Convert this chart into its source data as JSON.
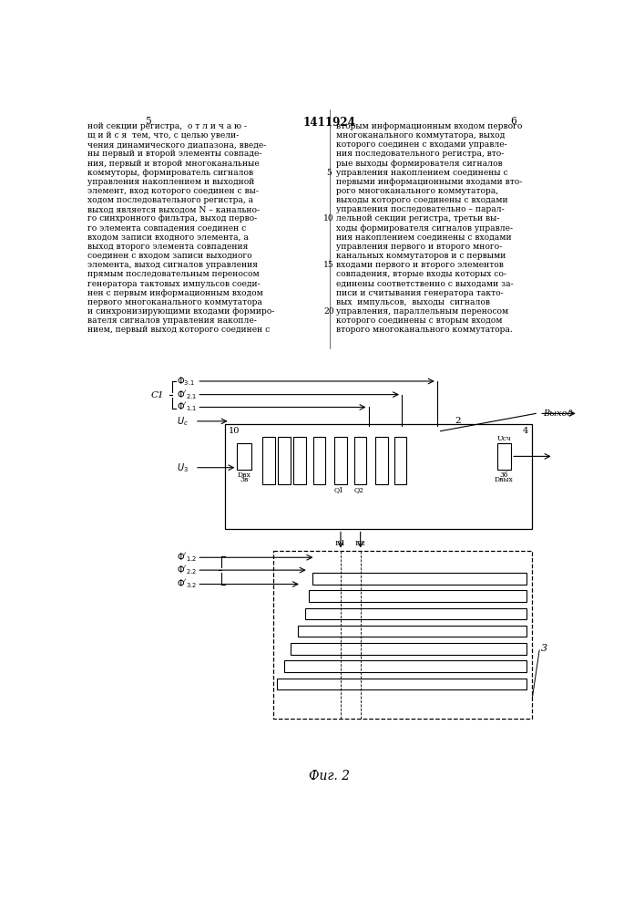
{
  "title": "1411924",
  "page_left": "5",
  "page_right": "6",
  "fig_label": "Фиг. 2",
  "bg_color": "#ffffff",
  "text_color": "#000000",
  "text_left": [
    "ной секции регистра,  о т л и ч а ю -",
    "щ и й с я  тем, что, с целью увели-",
    "чения динамического диапазона, введе-",
    "ны первый и второй элементы совпаде-",
    "ния, первый и второй многоканальные",
    "коммуторы, формирователь сигналов",
    "управления накоплением и выходной",
    "элемент, вход которого соединен с вы-",
    "ходом последовательного регистра, а",
    "выход является выходом N – канально-",
    "го синхронного фильтра, выход перво-",
    "го элемента совпадения соединен с",
    "входом записи входного элемента, а",
    "выход второго элемента совпадения",
    "соединен с входом записи выходного",
    "элемента, выход сигналов управления",
    "прямым последовательным переносом",
    "генератора тактовых импульсов соеди-",
    "нен с первым информационным входом",
    "первого многоканального коммутатора",
    "и синхронизирующими входами формиро-",
    "вателя сигналов управления накопле-",
    "нием, первый выход которого соединен с"
  ],
  "text_right": [
    "вторым информационным входом первого",
    "многоканального коммутатора, выход",
    "которого соединен с входами управле-",
    "ния последовательного регистра, вто-",
    "рые выходы формирователя сигналов",
    "управления накоплением соединены с",
    "первыми информационными входами вто-",
    "рого многоканального коммутатора,",
    "выходы которого соединены с входами",
    "управления последовательно – парал-",
    "лельной секции регистра, третьи вы-",
    "ходы формирователя сигналов управле-",
    "ния накоплением соединены с входами",
    "управления первого и второго много-",
    "канальных коммутаторов и с первыми",
    "входами первого и второго элементов",
    "совпадения, вторые входы которых со-",
    "единены соответственно с выходами за-",
    "писи и считывания генератора такто-",
    "вых  импульсов,  выходы  сигналов",
    "управления, параллельным переносом",
    "которого соединены с вторым входом",
    "второго многоканального коммутатора."
  ]
}
